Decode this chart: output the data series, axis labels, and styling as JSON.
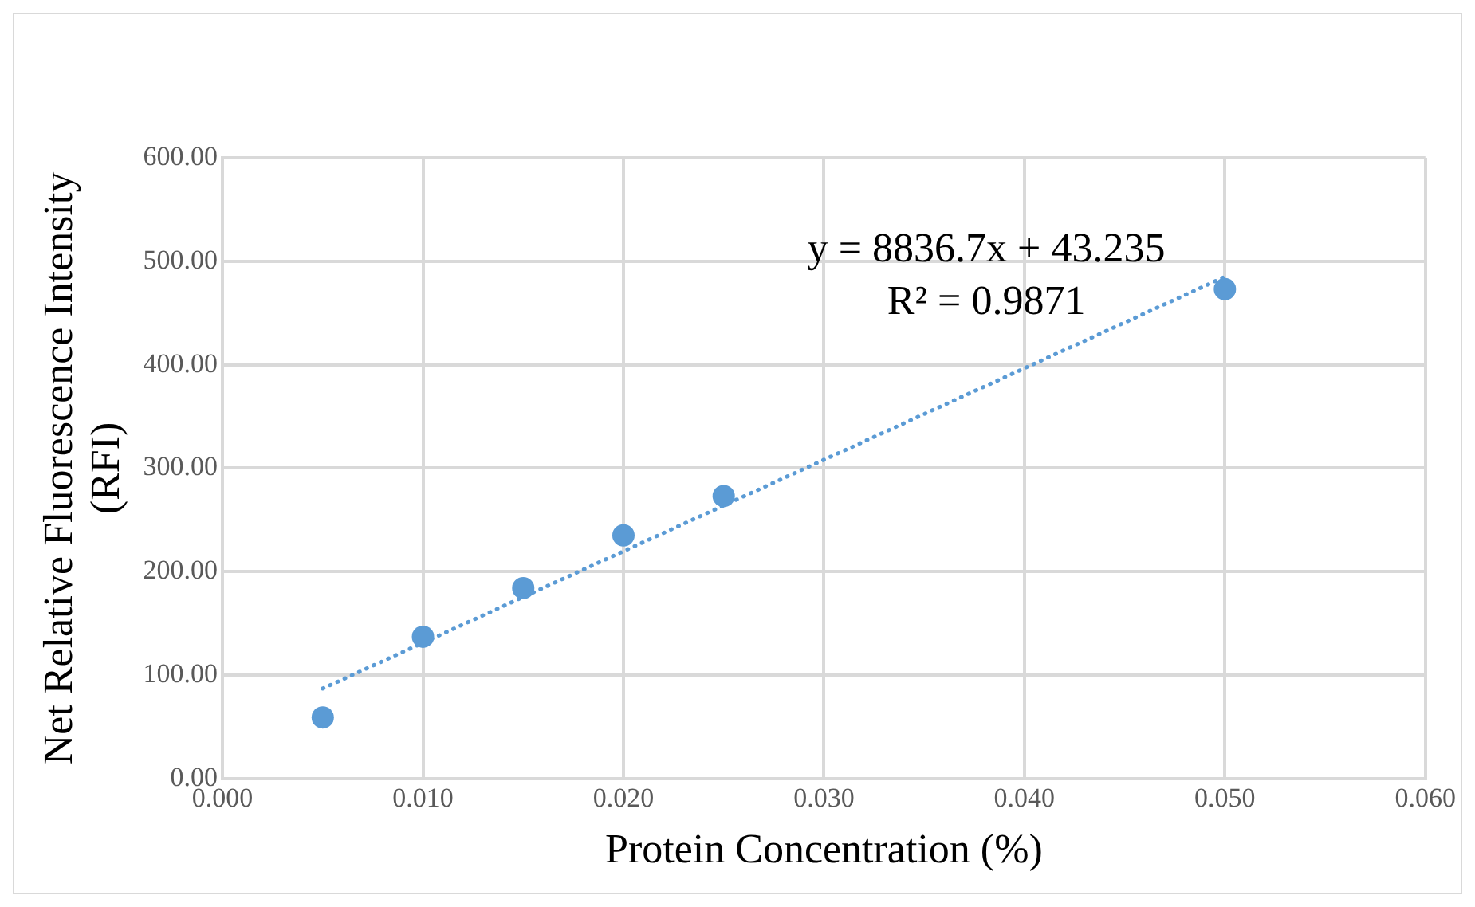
{
  "chart_data": {
    "type": "scatter",
    "xlabel": "Protein Concentration (%)",
    "ylabel": "Net Relative Fluorescence Intensity (RFI)",
    "series": [
      {
        "color": "#5b9bd5",
        "x": [
          0.005,
          0.01,
          0.015,
          0.02,
          0.025,
          0.05
        ],
        "values": [
          59,
          137,
          184,
          235,
          273,
          473
        ],
        "marker": "circle"
      },
      {
        "type": "line",
        "color": "#5b9bd5",
        "x": [
          0.005,
          0.05
        ],
        "values": [
          87,
          485
        ],
        "line_style": "dotted",
        "marker": "none"
      }
    ],
    "annotations": [
      "y = 8836.7x + 43.235",
      "R² = 0.9871"
    ],
    "xlim": [
      0,
      0.06
    ],
    "xticks": [
      {
        "value": 0,
        "label": "0.000"
      },
      {
        "value": 0.01,
        "label": "0.010"
      },
      {
        "value": 0.02,
        "label": "0.020"
      },
      {
        "value": 0.03,
        "label": "0.030"
      },
      {
        "value": 0.04,
        "label": "0.040"
      },
      {
        "value": 0.05,
        "label": "0.050"
      },
      {
        "value": 0.06,
        "label": "0.060"
      }
    ],
    "ylim": [
      0,
      600
    ],
    "yticks": [
      {
        "value": 0,
        "label": "0.00"
      },
      {
        "value": 100,
        "label": "100.00"
      },
      {
        "value": 200,
        "label": "200.00"
      },
      {
        "value": 300,
        "label": "300.00"
      },
      {
        "value": 400,
        "label": "400.00"
      },
      {
        "value": 500,
        "label": "500.00"
      },
      {
        "value": 600,
        "label": "600.00"
      }
    ],
    "grid": true,
    "legend": false
  }
}
